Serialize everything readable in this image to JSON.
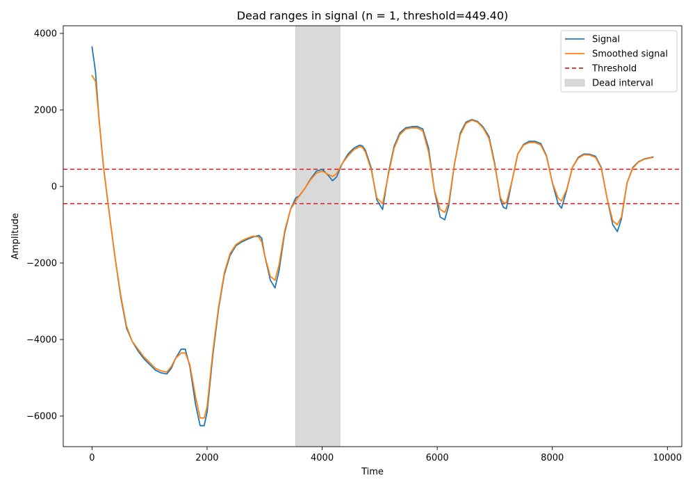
{
  "chart_data": {
    "type": "line",
    "title": "Dead ranges in signal (n = 1, threshold=449.40)",
    "xlabel": "Time",
    "ylabel": "Amplitude",
    "xlim": [
      -500,
      10250
    ],
    "ylim": [
      -6800,
      4200
    ],
    "x_ticks": [
      0,
      2000,
      4000,
      6000,
      8000,
      10000
    ],
    "x_tick_labels": [
      "0",
      "2000",
      "4000",
      "6000",
      "8000",
      "10000"
    ],
    "y_ticks": [
      -6000,
      -4000,
      -2000,
      0,
      2000,
      4000
    ],
    "y_tick_labels": [
      "−6000",
      "−4000",
      "−2000",
      "0",
      "2000",
      "4000"
    ],
    "grid": false,
    "legend_position": "top-right",
    "threshold": 449.4,
    "thresholds": [
      449.4,
      -449.4
    ],
    "dead_intervals": [
      {
        "start": 3540,
        "end": 4310
      }
    ],
    "series": [
      {
        "name": "Signal",
        "color": "#1f77b4",
        "style": "solid",
        "x": [
          0,
          60,
          120,
          200,
          300,
          400,
          500,
          600,
          700,
          800,
          900,
          1000,
          1100,
          1200,
          1300,
          1380,
          1450,
          1550,
          1620,
          1700,
          1800,
          1880,
          1950,
          2000,
          2100,
          2200,
          2300,
          2400,
          2500,
          2600,
          2700,
          2800,
          2900,
          2950,
          3000,
          3100,
          3180,
          3250,
          3350,
          3450,
          3540,
          3600,
          3700,
          3800,
          3900,
          4000,
          4100,
          4180,
          4250,
          4350,
          4450,
          4550,
          4650,
          4700,
          4750,
          4850,
          4950,
          5050,
          5150,
          5250,
          5350,
          5450,
          5550,
          5650,
          5750,
          5850,
          5950,
          6050,
          6130,
          6200,
          6300,
          6400,
          6500,
          6600,
          6700,
          6800,
          6900,
          7000,
          7100,
          7150,
          7200,
          7300,
          7400,
          7500,
          7600,
          7700,
          7800,
          7900,
          8000,
          8100,
          8160,
          8250,
          8350,
          8450,
          8550,
          8650,
          8750,
          8850,
          8950,
          9050,
          9130,
          9200,
          9300,
          9400,
          9500,
          9600,
          9750
        ],
        "values": [
          3650,
          3000,
          1800,
          500,
          -700,
          -1850,
          -2900,
          -3700,
          -4050,
          -4300,
          -4500,
          -4650,
          -4800,
          -4870,
          -4900,
          -4750,
          -4500,
          -4250,
          -4250,
          -4700,
          -5700,
          -6250,
          -6250,
          -5900,
          -4400,
          -3200,
          -2300,
          -1800,
          -1550,
          -1450,
          -1380,
          -1320,
          -1280,
          -1350,
          -1800,
          -2450,
          -2650,
          -2200,
          -1200,
          -600,
          -300,
          -250,
          -50,
          200,
          400,
          450,
          300,
          150,
          250,
          600,
          850,
          1000,
          1080,
          1060,
          950,
          500,
          -350,
          -600,
          350,
          1050,
          1400,
          1530,
          1560,
          1570,
          1500,
          1000,
          -100,
          -800,
          -870,
          -500,
          600,
          1400,
          1680,
          1750,
          1700,
          1550,
          1300,
          600,
          -350,
          -550,
          -580,
          150,
          850,
          1100,
          1180,
          1180,
          1120,
          800,
          100,
          -450,
          -570,
          -100,
          500,
          760,
          850,
          840,
          790,
          500,
          -300,
          -1000,
          -1180,
          -850,
          100,
          500,
          650,
          720,
          770
        ]
      },
      {
        "name": "Smoothed signal",
        "color": "#ff7f0e",
        "style": "solid",
        "x": [
          0,
          60,
          120,
          200,
          300,
          400,
          500,
          600,
          700,
          800,
          900,
          1000,
          1100,
          1200,
          1300,
          1380,
          1450,
          1550,
          1620,
          1700,
          1800,
          1880,
          1950,
          2000,
          2100,
          2200,
          2300,
          2400,
          2500,
          2600,
          2700,
          2800,
          2900,
          2950,
          3000,
          3100,
          3180,
          3250,
          3350,
          3450,
          3540,
          3600,
          3700,
          3800,
          3900,
          4000,
          4100,
          4180,
          4250,
          4350,
          4450,
          4550,
          4650,
          4700,
          4750,
          4850,
          4950,
          5050,
          5150,
          5250,
          5350,
          5450,
          5550,
          5650,
          5750,
          5850,
          5950,
          6050,
          6130,
          6200,
          6300,
          6400,
          6500,
          6600,
          6700,
          6800,
          6900,
          7000,
          7100,
          7150,
          7200,
          7300,
          7400,
          7500,
          7600,
          7700,
          7800,
          7900,
          8000,
          8100,
          8160,
          8250,
          8350,
          8450,
          8550,
          8650,
          8750,
          8850,
          8950,
          9050,
          9130,
          9200,
          9300,
          9400,
          9500,
          9600,
          9750
        ],
        "values": [
          2900,
          2750,
          1800,
          500,
          -700,
          -1850,
          -2850,
          -3650,
          -4050,
          -4250,
          -4450,
          -4600,
          -4750,
          -4820,
          -4850,
          -4700,
          -4500,
          -4350,
          -4350,
          -4650,
          -5500,
          -6050,
          -6050,
          -5750,
          -4300,
          -3150,
          -2250,
          -1750,
          -1520,
          -1420,
          -1350,
          -1300,
          -1320,
          -1450,
          -1800,
          -2350,
          -2450,
          -2050,
          -1150,
          -600,
          -380,
          -250,
          -50,
          180,
          350,
          400,
          320,
          260,
          330,
          600,
          800,
          960,
          1040,
          1020,
          900,
          450,
          -300,
          -450,
          300,
          1000,
          1350,
          1500,
          1530,
          1530,
          1450,
          900,
          -100,
          -600,
          -680,
          -420,
          600,
          1350,
          1650,
          1730,
          1680,
          1520,
          1250,
          550,
          -300,
          -420,
          -430,
          150,
          850,
          1080,
          1150,
          1150,
          1080,
          780,
          100,
          -300,
          -380,
          -80,
          500,
          740,
          830,
          820,
          760,
          480,
          -300,
          -900,
          -1000,
          -800,
          100,
          480,
          640,
          710,
          760
        ]
      }
    ],
    "legend": [
      {
        "label": "Signal",
        "kind": "line",
        "color": "#1f77b4",
        "dash": ""
      },
      {
        "label": "Smoothed signal",
        "kind": "line",
        "color": "#ff7f0e",
        "dash": ""
      },
      {
        "label": "Threshold",
        "kind": "line",
        "color": "#d62728",
        "dash": "6,4"
      },
      {
        "label": "Dead interval",
        "kind": "patch",
        "color": "#d9d9d9",
        "dash": ""
      }
    ]
  }
}
